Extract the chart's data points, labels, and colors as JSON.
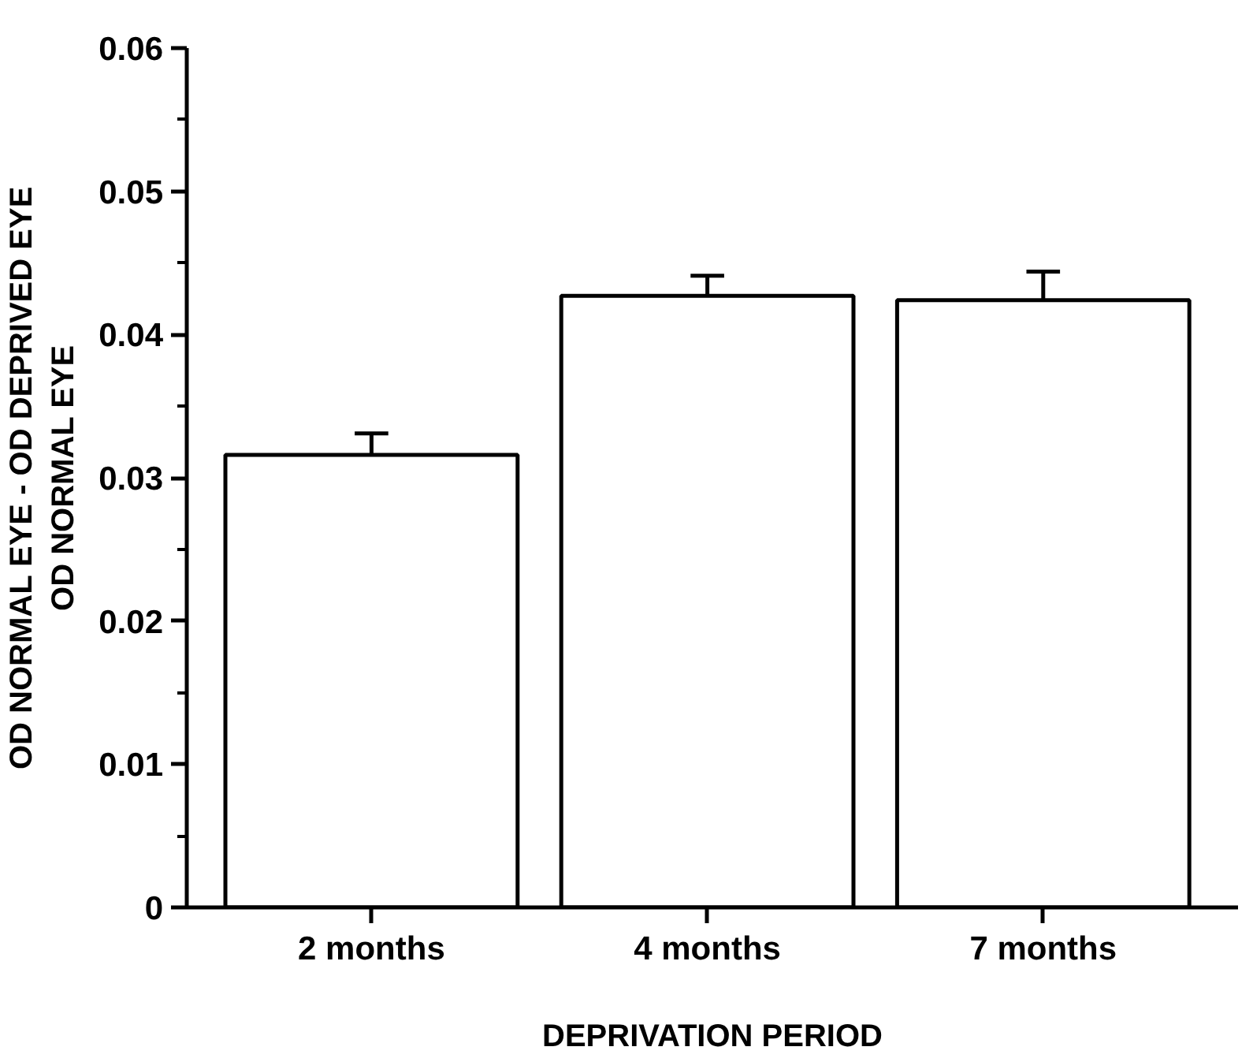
{
  "chart_data": {
    "type": "bar",
    "xlabel": "DEPRIVATION PERIOD",
    "ylabel": "OD NORMAL EYE - OD DEPRIVED EYE\nOD NORMAL EYE",
    "categories": [
      "2 months",
      "4 months",
      "7 months"
    ],
    "values": [
      0.0316,
      0.0427,
      0.0424
    ],
    "errors": [
      [
        0.0316,
        0.0331
      ],
      [
        0.0427,
        0.0441
      ],
      [
        0.0424,
        0.0444
      ]
    ],
    "color": "#ffffff",
    "ylim": [
      0,
      0.06
    ],
    "yticks": [
      0,
      0.01,
      0.02,
      0.03,
      0.04,
      0.05,
      0.06
    ],
    "grid": false
  }
}
